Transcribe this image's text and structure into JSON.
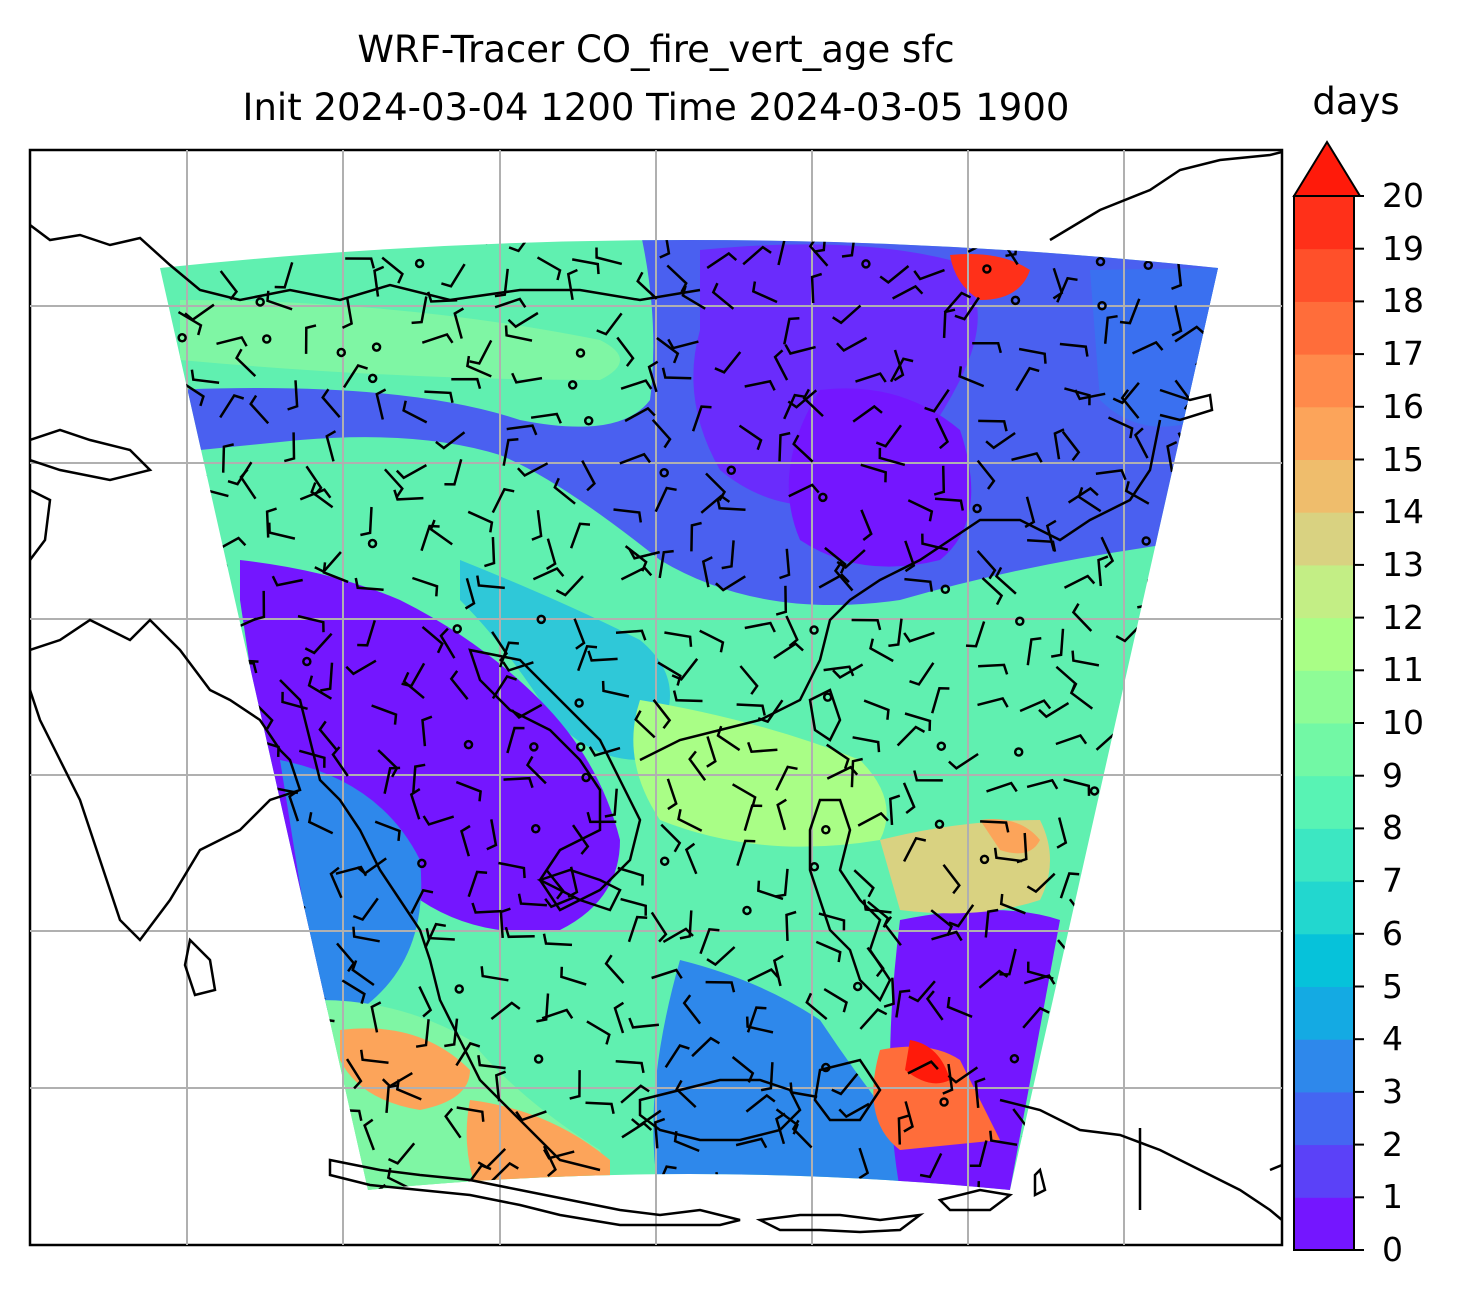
{
  "title_line1": "WRF-Tracer CO_fire_vert_age sfc",
  "title_line2": "Init 2024-03-04 1200 Time 2024-03-05 1900",
  "colorbar": {
    "label": "days",
    "ticks": [
      "0",
      "1",
      "2",
      "3",
      "4",
      "5",
      "6",
      "7",
      "8",
      "9",
      "10",
      "11",
      "12",
      "13",
      "14",
      "15",
      "16",
      "17",
      "18",
      "19",
      "20"
    ],
    "extend": "max",
    "colors": [
      "#7416ff",
      "#5b41f8",
      "#4466f2",
      "#2e88eb",
      "#14aae3",
      "#06c2da",
      "#22d7cf",
      "#3ce7c2",
      "#58f3b4",
      "#72f8a5",
      "#8efc96",
      "#a9fe86",
      "#c3ee85",
      "#d9d281",
      "#efbd6c",
      "#fca45a",
      "#ff8a4b",
      "#ff6d3a",
      "#ff502a",
      "#ff3019",
      "#ff1a0a"
    ],
    "extend_color": "#ff1a0a"
  },
  "map": {
    "projection": "lambert-conformal",
    "field": "CO_fire_vert_age",
    "level": "sfc",
    "units": "days",
    "gridlines": true,
    "coastlines": true,
    "wind_barbs": true
  }
}
